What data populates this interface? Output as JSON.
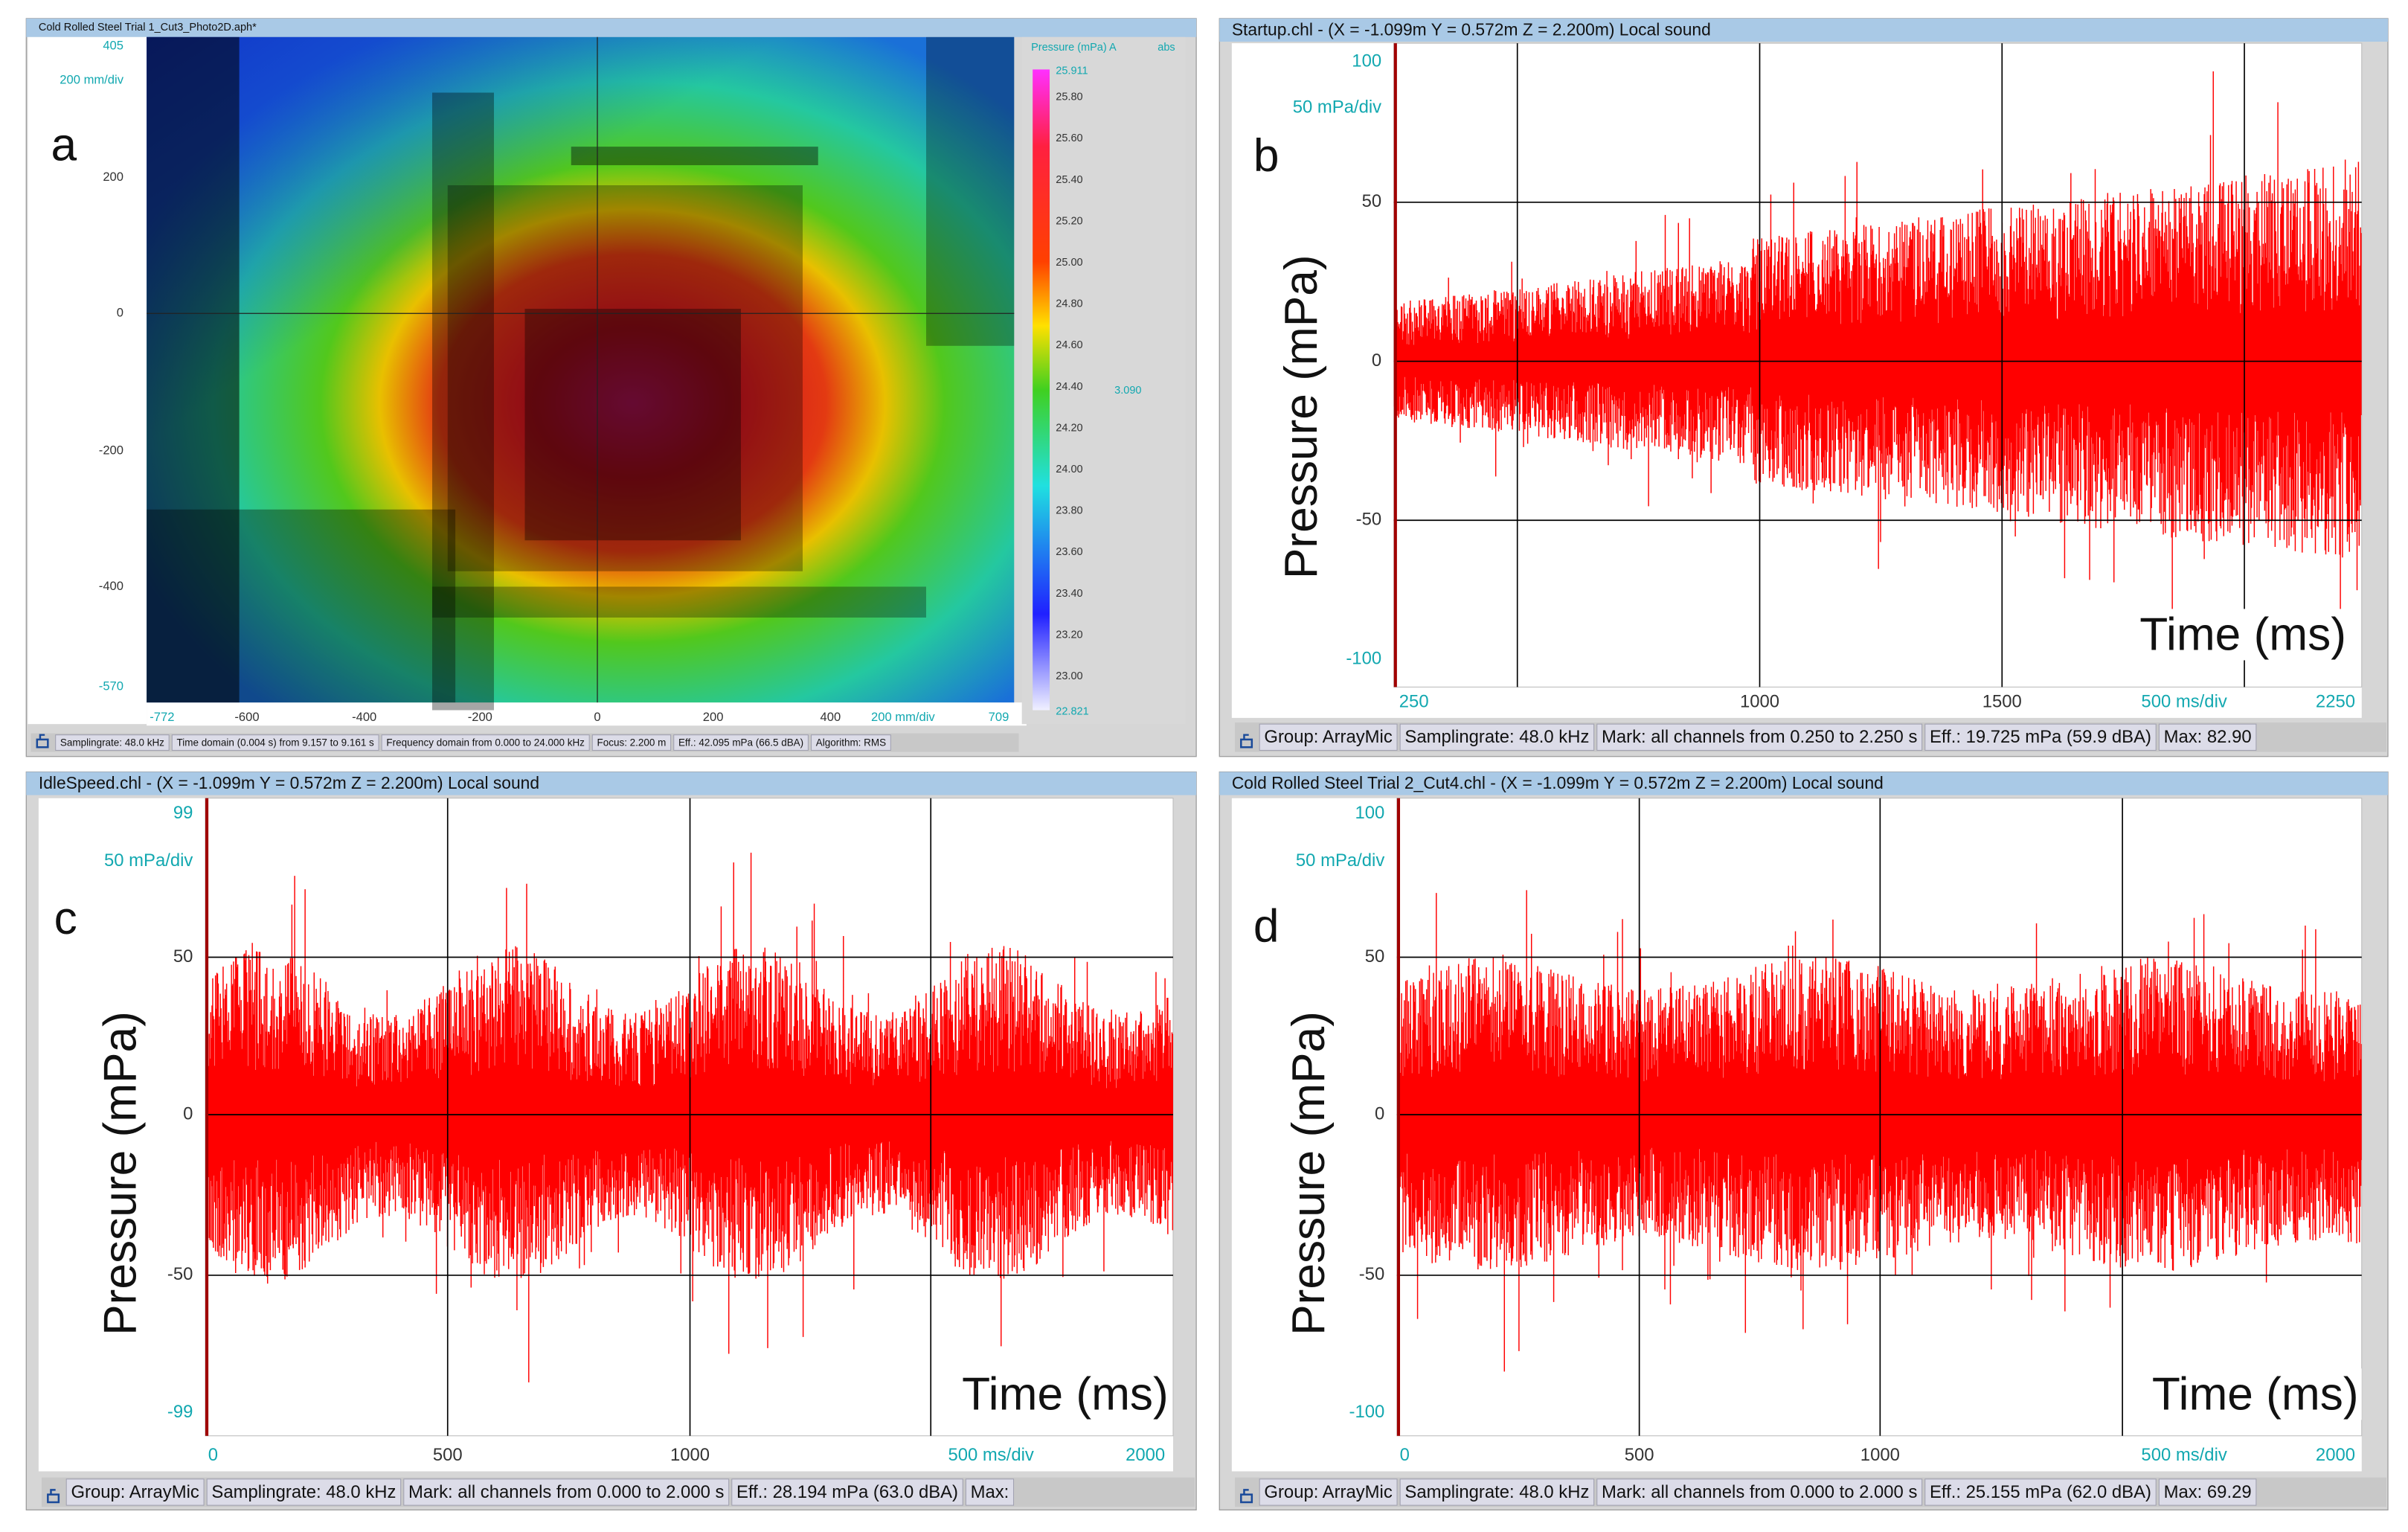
{
  "panels": [
    {
      "letter": "a",
      "title": "Cold Rolled Steel Trial 1_Cut3_Photo2D.aph*",
      "y_labels": [
        "405",
        "200 mm/div",
        "200",
        "0",
        "-200",
        "-400",
        "-570"
      ],
      "x_labels": [
        "-772",
        "-600",
        "-400",
        "-200",
        "0",
        "200",
        "400",
        "200 mm/div",
        "709"
      ],
      "colorbar": {
        "title": "Pressure (mPa) A",
        "mode": "abs",
        "labels": [
          "25.911",
          "25.80",
          "25.60",
          "25.40",
          "25.20",
          "25.00",
          "24.80",
          "24.60",
          "24.40",
          "24.20",
          "24.00",
          "23.80",
          "23.60",
          "23.40",
          "23.20",
          "23.00",
          "22.821"
        ],
        "marker": "3.090"
      },
      "status": [
        "Samplingrate: 48.0 kHz",
        "Time domain (0.004 s) from 9.157 to 9.161 s",
        "Frequency domain from 0.000 to 24.000 kHz",
        "Focus: 2.200 m",
        "Eff.: 42.095 mPa (66.5 dBA)",
        "Algorithm: RMS"
      ]
    },
    {
      "letter": "b",
      "title": "Startup.chl - (X = -1.099m Y = 0.572m Z = 2.200m) Local sound",
      "y_labels": [
        "100",
        "50 mPa/div",
        "50",
        "0",
        "-50",
        "-100"
      ],
      "x_labels": [
        "250",
        "1000",
        "1500",
        "500 ms/div",
        "2250"
      ],
      "y_axis_title": "Pressure (mPa)",
      "x_axis_title": "Time (ms)",
      "status": [
        "Group: ArrayMic",
        "Samplingrate: 48.0 kHz",
        "Mark: all channels from 0.250 to 2.250 s",
        "Eff.: 19.725 mPa (59.9 dBA)",
        "Max: 82.90"
      ]
    },
    {
      "letter": "c",
      "title": "IdleSpeed.chl - (X = -1.099m Y = 0.572m Z = 2.200m) Local sound",
      "y_labels": [
        "99",
        "50 mPa/div",
        "50",
        "0",
        "-50",
        "-99"
      ],
      "x_labels": [
        "0",
        "500",
        "1000",
        "500 ms/div",
        "2000"
      ],
      "y_axis_title": "Pressure (mPa)",
      "x_axis_title": "Time (ms)",
      "status": [
        "Group: ArrayMic",
        "Samplingrate: 48.0 kHz",
        "Mark: all channels from 0.000 to 2.000 s",
        "Eff.: 28.194 mPa (63.0 dBA)",
        "Max:"
      ]
    },
    {
      "letter": "d",
      "title": "Cold Rolled Steel Trial 2_Cut4.chl - (X = -1.099m Y = 0.572m Z = 2.200m) Local sound",
      "y_labels": [
        "100",
        "50 mPa/div",
        "50",
        "0",
        "-50",
        "-100"
      ],
      "x_labels": [
        "0",
        "500",
        "1000",
        "500 ms/div",
        "2000"
      ],
      "y_axis_title": "Pressure (mPa)",
      "x_axis_title": "Time (ms)",
      "status": [
        "Group: ArrayMic",
        "Samplingrate: 48.0 kHz",
        "Mark: all channels from 0.000 to 2.000 s",
        "Eff.: 25.155 mPa (62.0 dBA)",
        "Max: 69.29"
      ]
    }
  ]
}
